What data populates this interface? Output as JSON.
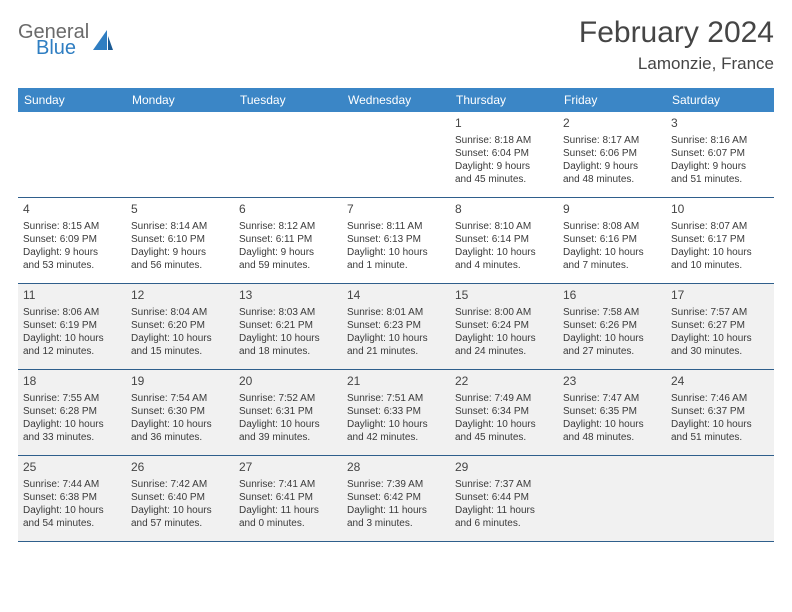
{
  "brand": {
    "name_part1": "General",
    "name_part2": "Blue",
    "color_gray": "#6a6a6a",
    "color_blue": "#2f7ec2"
  },
  "header": {
    "title": "February 2024",
    "location": "Lamonzie, France"
  },
  "colors": {
    "header_row_bg": "#3b86c6",
    "header_row_text": "#ffffff",
    "cell_border": "#2f5f8c",
    "shade_bg": "#f1f1f1",
    "text": "#3a3a3a"
  },
  "dow": [
    "Sunday",
    "Monday",
    "Tuesday",
    "Wednesday",
    "Thursday",
    "Friday",
    "Saturday"
  ],
  "weeks": [
    [
      null,
      null,
      null,
      null,
      {
        "n": "1",
        "sr": "Sunrise: 8:18 AM",
        "ss": "Sunset: 6:04 PM",
        "d1": "Daylight: 9 hours",
        "d2": "and 45 minutes."
      },
      {
        "n": "2",
        "sr": "Sunrise: 8:17 AM",
        "ss": "Sunset: 6:06 PM",
        "d1": "Daylight: 9 hours",
        "d2": "and 48 minutes."
      },
      {
        "n": "3",
        "sr": "Sunrise: 8:16 AM",
        "ss": "Sunset: 6:07 PM",
        "d1": "Daylight: 9 hours",
        "d2": "and 51 minutes."
      }
    ],
    [
      {
        "n": "4",
        "sr": "Sunrise: 8:15 AM",
        "ss": "Sunset: 6:09 PM",
        "d1": "Daylight: 9 hours",
        "d2": "and 53 minutes."
      },
      {
        "n": "5",
        "sr": "Sunrise: 8:14 AM",
        "ss": "Sunset: 6:10 PM",
        "d1": "Daylight: 9 hours",
        "d2": "and 56 minutes."
      },
      {
        "n": "6",
        "sr": "Sunrise: 8:12 AM",
        "ss": "Sunset: 6:11 PM",
        "d1": "Daylight: 9 hours",
        "d2": "and 59 minutes."
      },
      {
        "n": "7",
        "sr": "Sunrise: 8:11 AM",
        "ss": "Sunset: 6:13 PM",
        "d1": "Daylight: 10 hours",
        "d2": "and 1 minute."
      },
      {
        "n": "8",
        "sr": "Sunrise: 8:10 AM",
        "ss": "Sunset: 6:14 PM",
        "d1": "Daylight: 10 hours",
        "d2": "and 4 minutes."
      },
      {
        "n": "9",
        "sr": "Sunrise: 8:08 AM",
        "ss": "Sunset: 6:16 PM",
        "d1": "Daylight: 10 hours",
        "d2": "and 7 minutes."
      },
      {
        "n": "10",
        "sr": "Sunrise: 8:07 AM",
        "ss": "Sunset: 6:17 PM",
        "d1": "Daylight: 10 hours",
        "d2": "and 10 minutes."
      }
    ],
    [
      {
        "n": "11",
        "sr": "Sunrise: 8:06 AM",
        "ss": "Sunset: 6:19 PM",
        "d1": "Daylight: 10 hours",
        "d2": "and 12 minutes."
      },
      {
        "n": "12",
        "sr": "Sunrise: 8:04 AM",
        "ss": "Sunset: 6:20 PM",
        "d1": "Daylight: 10 hours",
        "d2": "and 15 minutes."
      },
      {
        "n": "13",
        "sr": "Sunrise: 8:03 AM",
        "ss": "Sunset: 6:21 PM",
        "d1": "Daylight: 10 hours",
        "d2": "and 18 minutes."
      },
      {
        "n": "14",
        "sr": "Sunrise: 8:01 AM",
        "ss": "Sunset: 6:23 PM",
        "d1": "Daylight: 10 hours",
        "d2": "and 21 minutes."
      },
      {
        "n": "15",
        "sr": "Sunrise: 8:00 AM",
        "ss": "Sunset: 6:24 PM",
        "d1": "Daylight: 10 hours",
        "d2": "and 24 minutes."
      },
      {
        "n": "16",
        "sr": "Sunrise: 7:58 AM",
        "ss": "Sunset: 6:26 PM",
        "d1": "Daylight: 10 hours",
        "d2": "and 27 minutes."
      },
      {
        "n": "17",
        "sr": "Sunrise: 7:57 AM",
        "ss": "Sunset: 6:27 PM",
        "d1": "Daylight: 10 hours",
        "d2": "and 30 minutes."
      }
    ],
    [
      {
        "n": "18",
        "sr": "Sunrise: 7:55 AM",
        "ss": "Sunset: 6:28 PM",
        "d1": "Daylight: 10 hours",
        "d2": "and 33 minutes."
      },
      {
        "n": "19",
        "sr": "Sunrise: 7:54 AM",
        "ss": "Sunset: 6:30 PM",
        "d1": "Daylight: 10 hours",
        "d2": "and 36 minutes."
      },
      {
        "n": "20",
        "sr": "Sunrise: 7:52 AM",
        "ss": "Sunset: 6:31 PM",
        "d1": "Daylight: 10 hours",
        "d2": "and 39 minutes."
      },
      {
        "n": "21",
        "sr": "Sunrise: 7:51 AM",
        "ss": "Sunset: 6:33 PM",
        "d1": "Daylight: 10 hours",
        "d2": "and 42 minutes."
      },
      {
        "n": "22",
        "sr": "Sunrise: 7:49 AM",
        "ss": "Sunset: 6:34 PM",
        "d1": "Daylight: 10 hours",
        "d2": "and 45 minutes."
      },
      {
        "n": "23",
        "sr": "Sunrise: 7:47 AM",
        "ss": "Sunset: 6:35 PM",
        "d1": "Daylight: 10 hours",
        "d2": "and 48 minutes."
      },
      {
        "n": "24",
        "sr": "Sunrise: 7:46 AM",
        "ss": "Sunset: 6:37 PM",
        "d1": "Daylight: 10 hours",
        "d2": "and 51 minutes."
      }
    ],
    [
      {
        "n": "25",
        "sr": "Sunrise: 7:44 AM",
        "ss": "Sunset: 6:38 PM",
        "d1": "Daylight: 10 hours",
        "d2": "and 54 minutes."
      },
      {
        "n": "26",
        "sr": "Sunrise: 7:42 AM",
        "ss": "Sunset: 6:40 PM",
        "d1": "Daylight: 10 hours",
        "d2": "and 57 minutes."
      },
      {
        "n": "27",
        "sr": "Sunrise: 7:41 AM",
        "ss": "Sunset: 6:41 PM",
        "d1": "Daylight: 11 hours",
        "d2": "and 0 minutes."
      },
      {
        "n": "28",
        "sr": "Sunrise: 7:39 AM",
        "ss": "Sunset: 6:42 PM",
        "d1": "Daylight: 11 hours",
        "d2": "and 3 minutes."
      },
      {
        "n": "29",
        "sr": "Sunrise: 7:37 AM",
        "ss": "Sunset: 6:44 PM",
        "d1": "Daylight: 11 hours",
        "d2": "and 6 minutes."
      },
      null,
      null
    ]
  ],
  "shaded_rows": [
    2,
    3,
    4
  ]
}
